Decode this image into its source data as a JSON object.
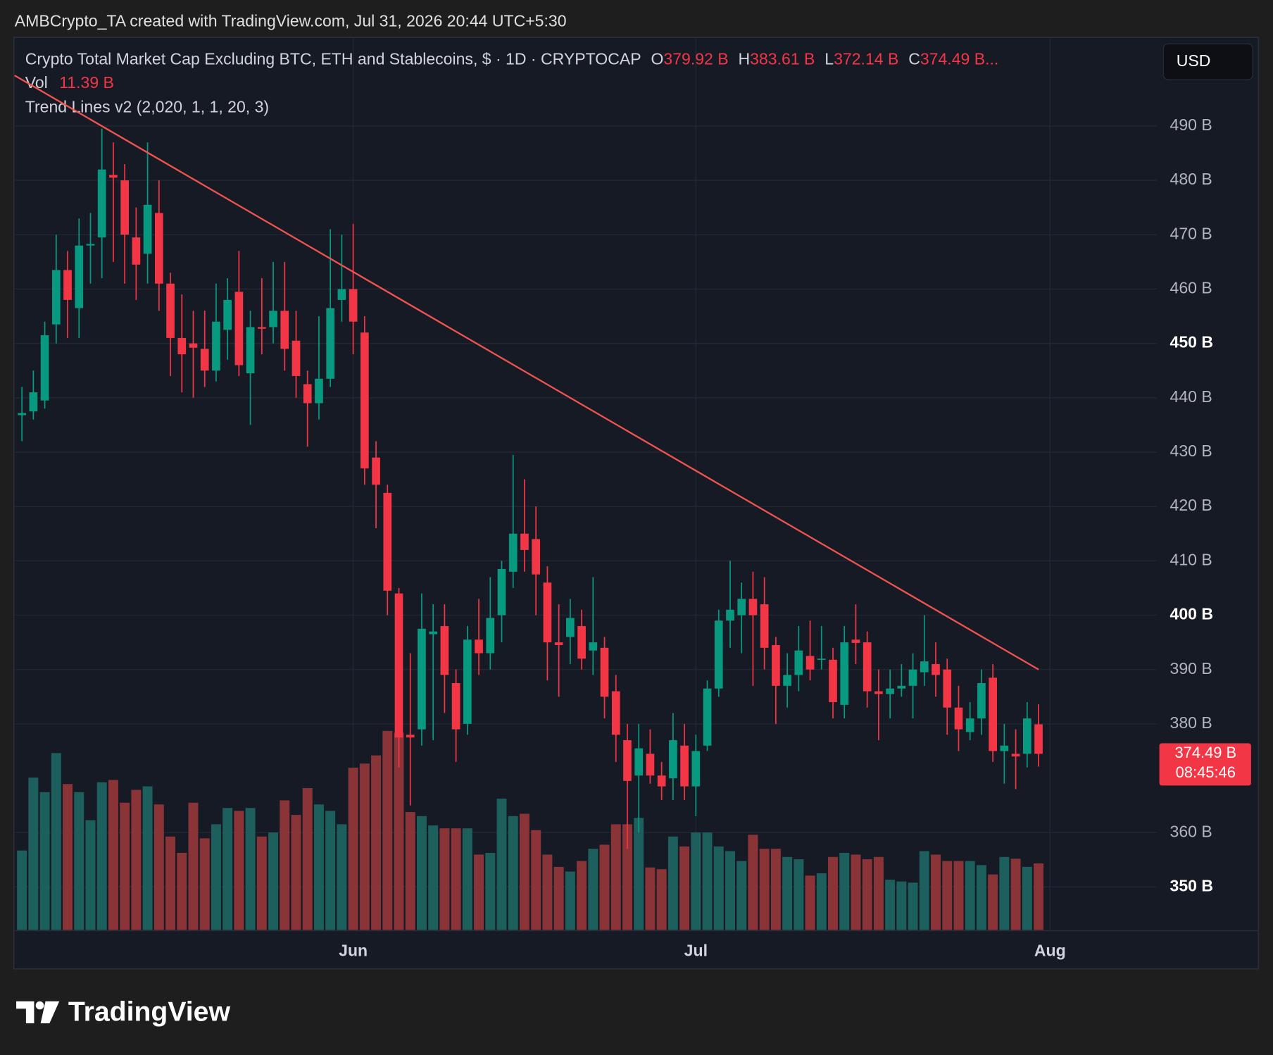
{
  "watermark": "AMBCrypto_TA created with TradingView.com, Jul 31, 2026 20:44 UTC+5:30",
  "currency_button": "USD",
  "footer": {
    "logo_text": "TradingView"
  },
  "chart_data": {
    "type": "candlestick",
    "title": "Crypto Total Market Cap Excluding BTC, ETH and Stablecoins, $ · 1D · CRYPTOCAP",
    "legend": [
      {
        "key": "O",
        "label": "379.92 B"
      },
      {
        "key": "H",
        "label": "383.61 B"
      },
      {
        "key": "L",
        "label": "372.14 B"
      },
      {
        "key": "C",
        "label": "374.49 B..."
      }
    ],
    "volume_title": "Vol",
    "volume_label": "11.39 B",
    "indicator": "Trend Lines v2 (2,020, 1, 1, 20, 3)",
    "up_color": "#089981",
    "down_color": "#f23645",
    "volume_up_color": "#1d5f5c",
    "volume_down_color": "#8a3438",
    "ylim": [
      342.1,
      506.0
    ],
    "xlim": [
      -0.64,
      99.36
    ],
    "yticks": [
      {
        "value": 350,
        "label": "350 B",
        "bold": true
      },
      {
        "value": 360,
        "label": "360 B"
      },
      {
        "value": 380,
        "label": "380 B"
      },
      {
        "value": 390,
        "label": "390 B"
      },
      {
        "value": 400,
        "label": "400 B",
        "bold": true
      },
      {
        "value": 410,
        "label": "410 B"
      },
      {
        "value": 420,
        "label": "420 B"
      },
      {
        "value": 430,
        "label": "430 B"
      },
      {
        "value": 440,
        "label": "440 B"
      },
      {
        "value": 450,
        "label": "450 B",
        "bold": true
      },
      {
        "value": 460,
        "label": "460 B"
      },
      {
        "value": 470,
        "label": "470 B"
      },
      {
        "value": 480,
        "label": "480 B"
      },
      {
        "value": 490,
        "label": "490 B"
      }
    ],
    "xticks": [
      {
        "value": 29,
        "label": "Jun"
      },
      {
        "value": 59,
        "label": "Jul"
      },
      {
        "value": 90,
        "label": "Aug"
      }
    ],
    "grid": true,
    "open": [
      436.8,
      437.5,
      439.5,
      453.5,
      463.5,
      456.5,
      468,
      469.5,
      481,
      480,
      469.5,
      466.5,
      474,
      461,
      451,
      450,
      449,
      445,
      452.5,
      459.5,
      444.5,
      453,
      453,
      456,
      450.5,
      442.5,
      439,
      443.5,
      458,
      460,
      452,
      429,
      422.5,
      404,
      378,
      379,
      396.5,
      398,
      387.5,
      380,
      395.5,
      393,
      400,
      408,
      415,
      414,
      406,
      395,
      396,
      398,
      393.5,
      394,
      386,
      377,
      370.5,
      374.5,
      370.5,
      370,
      376,
      368.5,
      376,
      386.5,
      399,
      400,
      403,
      402,
      394.5,
      387,
      389,
      392.5,
      391.8,
      391.8,
      383.5,
      395.5,
      395,
      386,
      385.5,
      386.5,
      387,
      389.5,
      391,
      390,
      383,
      378.5,
      381,
      388.5,
      375,
      374.5,
      374.5,
      379.92
    ],
    "high": [
      442,
      445,
      454,
      470,
      467,
      473,
      474,
      489.5,
      487,
      483,
      475,
      487,
      480,
      463,
      459,
      456,
      456,
      461,
      462,
      467,
      456,
      462,
      465,
      465,
      456,
      445,
      455,
      471,
      470,
      472,
      455,
      432,
      424,
      405,
      393,
      404,
      402,
      402,
      390,
      398,
      403,
      407,
      410,
      429.5,
      425,
      420,
      409,
      402,
      403,
      401,
      407,
      396,
      389,
      380,
      380,
      379,
      373,
      382,
      380,
      378,
      388,
      401,
      410,
      406,
      408,
      407,
      396,
      393,
      398,
      399,
      398,
      394,
      398,
      402,
      397,
      390,
      390,
      391,
      393,
      400,
      395,
      392,
      387,
      384,
      390,
      391,
      380,
      379,
      384,
      383.61
    ],
    "low": [
      432,
      436,
      438,
      450,
      451,
      451,
      461,
      462,
      465,
      461,
      458,
      461,
      456,
      444,
      441,
      440,
      442,
      443,
      447,
      444,
      435,
      448,
      450,
      445,
      440,
      431,
      436,
      442,
      454,
      448,
      424,
      416,
      400,
      372,
      365,
      376,
      377,
      382,
      373,
      378,
      389,
      390,
      395,
      405,
      408,
      400,
      388,
      385,
      391,
      390,
      389,
      381,
      373,
      357,
      360,
      369,
      366,
      366,
      366,
      363,
      375,
      385,
      394,
      393,
      387,
      390,
      380,
      383,
      386,
      388,
      390,
      381,
      381,
      391,
      383,
      377,
      381,
      385,
      381,
      387,
      385,
      378,
      375,
      377,
      378,
      373,
      369,
      368,
      372,
      372.14
    ],
    "close": [
      437.2,
      441,
      451.5,
      463.5,
      458,
      468,
      468.3,
      482,
      480.5,
      470,
      464.5,
      475.5,
      461,
      451,
      448,
      449.2,
      445,
      454,
      458,
      446,
      453,
      452.7,
      456,
      449,
      444,
      439,
      443.5,
      456.5,
      460,
      454,
      427,
      424,
      404.5,
      377.5,
      377.5,
      397.5,
      397,
      389,
      379,
      395.5,
      393,
      399.5,
      408.5,
      415,
      412,
      407.5,
      395,
      394.5,
      399.5,
      392,
      395,
      385,
      378,
      369.5,
      375.5,
      370.5,
      368.5,
      377,
      368.5,
      375,
      386.5,
      399,
      401,
      403,
      400,
      394,
      387,
      389,
      393.5,
      390,
      392,
      384,
      395,
      394.9,
      386,
      385.5,
      386.5,
      387,
      390,
      391.5,
      389,
      383,
      379,
      381,
      387.5,
      375,
      376,
      374,
      381,
      374.49
    ],
    "volume": [
      13.6,
      26.1,
      23.6,
      30.3,
      25,
      23.6,
      18.8,
      25.3,
      25.7,
      21.8,
      24,
      24.6,
      21.5,
      16,
      13.2,
      21.8,
      15.7,
      18.1,
      20.9,
      20.4,
      20.9,
      16,
      16.7,
      22.2,
      19.7,
      24.3,
      21.5,
      20.4,
      18.1,
      27.8,
      28.5,
      29.9,
      34.1,
      33.8,
      20.2,
      19.5,
      17.9,
      17.4,
      17.4,
      17.4,
      12.9,
      13.2,
      22.5,
      19.5,
      19.9,
      17.1,
      12.9,
      10.8,
      10,
      11.8,
      13.9,
      14.6,
      18.1,
      18.1,
      19.2,
      10.7,
      10.4,
      16,
      14.3,
      16.7,
      16.7,
      14.3,
      13.5,
      11.8,
      16.3,
      13.9,
      13.9,
      12.5,
      12.1,
      9.3,
      9.7,
      12.5,
      13.2,
      12.9,
      12.1,
      12.5,
      8.6,
      8.3,
      8.1,
      13.5,
      12.9,
      11.8,
      11.8,
      11.8,
      11.1,
      9.5,
      12.5,
      12.2,
      10.8,
      11.39
    ],
    "trend_line": {
      "color": "#f05350",
      "from": {
        "index": -0.64,
        "value": 499.3
      },
      "to": {
        "index": 89,
        "value": 390
      }
    },
    "price_tag": {
      "label": "374.49 B",
      "countdown": "08:45:46"
    }
  }
}
